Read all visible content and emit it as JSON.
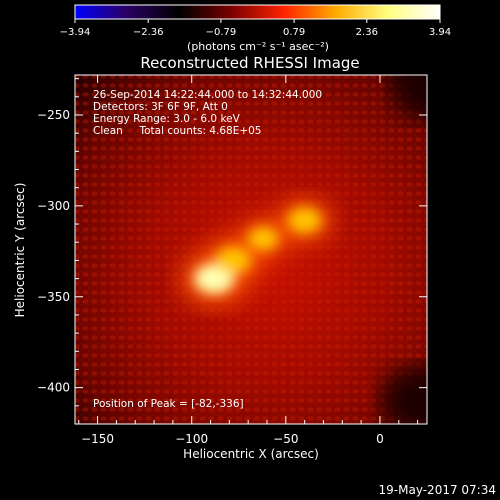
{
  "chart_data": {
    "type": "heatmap",
    "title": "Reconstructed RHESSI Image",
    "colorbar": {
      "ticks": [
        "-3.94",
        "-2.36",
        "-0.79",
        "0.79",
        "2.36",
        "3.94"
      ],
      "min": -3.94,
      "max": 3.94,
      "unit_label": "(photons cm⁻² s⁻¹ asec⁻²)",
      "colormap": [
        "#0000ff",
        "#2a0060",
        "#000000",
        "#7a0000",
        "#ff2200",
        "#ffaa00",
        "#ffff80",
        "#ffffff"
      ]
    },
    "xlabel": "Heliocentric X (arcsec)",
    "ylabel": "Heliocentric Y (arcsec)",
    "xlim": [
      -162,
      25
    ],
    "ylim": [
      -420,
      -228
    ],
    "xticks": [
      -150,
      -100,
      -50,
      0
    ],
    "yticks": [
      -250,
      -300,
      -350,
      -400
    ],
    "xtick_labels": [
      "−150",
      "−100",
      "−50",
      "0"
    ],
    "ytick_labels": [
      "−250",
      "−300",
      "−350",
      "−400"
    ],
    "info_lines": [
      "26-Sep-2014 14:22:44.000 to 14:32:44.000",
      "Detectors: 3F 6F 9F, Att 0",
      "Energy Range: 3.0 - 6.0 keV",
      "Clean     Total counts: 4.68E+05"
    ],
    "peak_label": "Position of Peak = [-82,-336]",
    "peak": [
      -82,
      -336
    ],
    "sources": [
      {
        "x": -88,
        "y": -340,
        "level": 1.0
      },
      {
        "x": -78,
        "y": -330,
        "level": 0.85
      },
      {
        "x": -62,
        "y": -318,
        "level": 0.7
      },
      {
        "x": -40,
        "y": -308,
        "level": 0.8
      }
    ]
  },
  "footer": {
    "timestamp": "19-May-2017 07:34"
  }
}
